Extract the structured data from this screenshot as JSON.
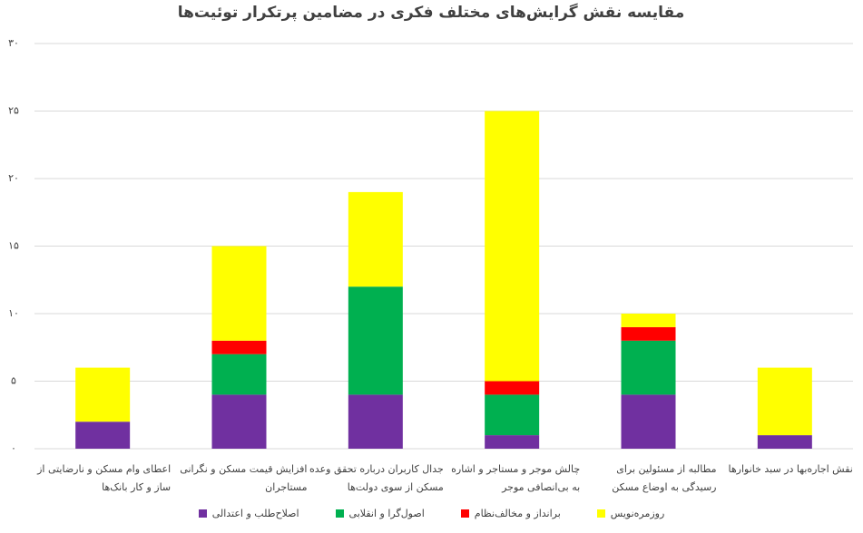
{
  "chart_data": {
    "type": "stacked_bar",
    "title": "مقایسه نقش گرایش‌های مختلف فکری در مضامین پرتکرار توئیت‌ها",
    "categories": [
      "اعطای وام مسکن و نارضایتی از ساز و کار بانک‌ها",
      "افزایش قیمت مسکن و نگرانی مستاجران",
      "جدال کاربران درباره تحقق وعده مسکن از سوی دولت‌ها",
      "چالش موجر و مستاجر و اشاره به بی‌انصافی موجر",
      "مطالبه از مسئولین برای رسیدگی به اوضاع مسکن",
      "نقش اجاره‌بها در سبد خانوارها"
    ],
    "series": [
      {
        "name": "اصلاح‌طلب و اعتدالی",
        "color": "#7030a0",
        "values": [
          2,
          4,
          4,
          1,
          4,
          1
        ]
      },
      {
        "name": "اصول‌گرا و انقلابی",
        "color": "#00b050",
        "values": [
          0,
          3,
          8,
          3,
          4,
          0
        ]
      },
      {
        "name": "برانداز و مخالف‌نظام",
        "color": "#ff0000",
        "values": [
          0,
          1,
          0,
          1,
          1,
          0
        ]
      },
      {
        "name": "روزمره‌نویس",
        "color": "#ffff00",
        "values": [
          4,
          7,
          7,
          20,
          1,
          5
        ]
      }
    ],
    "ylim": [
      0,
      30
    ],
    "yticks": [
      {
        "value": 0,
        "label": "۰"
      },
      {
        "value": 5,
        "label": "۵"
      },
      {
        "value": 10,
        "label": "۱۰"
      },
      {
        "value": 15,
        "label": "۱۵"
      },
      {
        "value": 20,
        "label": "۲۰"
      },
      {
        "value": 25,
        "label": "۲۵"
      },
      {
        "value": 30,
        "label": "۳۰"
      }
    ],
    "grid": true
  }
}
